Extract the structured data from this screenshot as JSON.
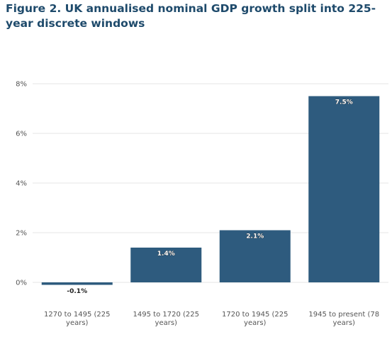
{
  "title": "Figure 2. UK annualised nominal GDP growth split into 225-year discrete windows",
  "colors": {
    "bar": "#2e5b7e",
    "title": "#1e4a6b",
    "grid": "#e4e4e4",
    "axis": "#555555"
  },
  "chart_data": {
    "type": "bar",
    "title": "Figure 2. UK annualised nominal GDP growth split into 225-year discrete windows",
    "categories": [
      [
        "1270 to 1495 (225",
        "years)"
      ],
      [
        "1495 to 1720 (225",
        "years)"
      ],
      [
        "1720 to 1945 (225",
        "years)"
      ],
      [
        "1945 to present (78",
        "years)"
      ]
    ],
    "values": [
      -0.1,
      1.4,
      2.1,
      7.5
    ],
    "data_labels": [
      "-0.1%",
      "1.4%",
      "2.1%",
      "7.5%"
    ],
    "y_ticks": [
      0,
      2,
      4,
      6,
      8
    ],
    "y_tick_labels": [
      "0%",
      "2%",
      "4%",
      "6%",
      "8%"
    ],
    "ylim": [
      -0.1,
      8
    ],
    "grid": true,
    "legend": "none"
  }
}
